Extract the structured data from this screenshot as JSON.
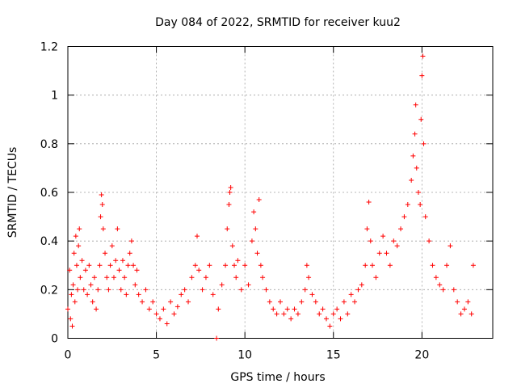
{
  "chart_data": {
    "type": "scatter",
    "title": "Day 084 of 2022, SRMTID for receiver kuu2",
    "xlabel": "GPS time / hours",
    "ylabel": "SRMTID / TECUs",
    "xlim": [
      0,
      24
    ],
    "ylim": [
      0,
      1.2
    ],
    "xticks": [
      0,
      5,
      10,
      15,
      20
    ],
    "xtick_labels": [
      "0",
      "5",
      "10",
      "15",
      "20"
    ],
    "yticks": [
      0,
      0.2,
      0.4,
      0.6,
      0.8,
      1,
      1.2
    ],
    "ytick_labels": [
      "0",
      "0.2",
      "0.4",
      "0.6",
      "0.8",
      "1",
      "1.2"
    ],
    "grid": true,
    "marker": "+",
    "color": "#ff0000",
    "series": [
      {
        "name": "SRMTID",
        "points": [
          [
            0.0,
            0.12
          ],
          [
            0.1,
            0.28
          ],
          [
            0.15,
            0.08
          ],
          [
            0.2,
            0.18
          ],
          [
            0.25,
            0.05
          ],
          [
            0.3,
            0.22
          ],
          [
            0.35,
            0.35
          ],
          [
            0.4,
            0.15
          ],
          [
            0.45,
            0.42
          ],
          [
            0.5,
            0.3
          ],
          [
            0.55,
            0.2
          ],
          [
            0.6,
            0.38
          ],
          [
            0.65,
            0.45
          ],
          [
            0.7,
            0.25
          ],
          [
            0.8,
            0.32
          ],
          [
            0.9,
            0.2
          ],
          [
            1.0,
            0.28
          ],
          [
            1.1,
            0.18
          ],
          [
            1.2,
            0.3
          ],
          [
            1.3,
            0.22
          ],
          [
            1.4,
            0.15
          ],
          [
            1.5,
            0.25
          ],
          [
            1.6,
            0.12
          ],
          [
            1.7,
            0.2
          ],
          [
            1.8,
            0.3
          ],
          [
            1.85,
            0.5
          ],
          [
            1.9,
            0.59
          ],
          [
            1.95,
            0.55
          ],
          [
            2.0,
            0.45
          ],
          [
            2.1,
            0.35
          ],
          [
            2.2,
            0.25
          ],
          [
            2.3,
            0.2
          ],
          [
            2.4,
            0.3
          ],
          [
            2.5,
            0.38
          ],
          [
            2.6,
            0.25
          ],
          [
            2.7,
            0.32
          ],
          [
            2.8,
            0.45
          ],
          [
            2.9,
            0.28
          ],
          [
            3.0,
            0.2
          ],
          [
            3.1,
            0.32
          ],
          [
            3.2,
            0.25
          ],
          [
            3.3,
            0.18
          ],
          [
            3.4,
            0.3
          ],
          [
            3.5,
            0.35
          ],
          [
            3.6,
            0.4
          ],
          [
            3.7,
            0.3
          ],
          [
            3.8,
            0.22
          ],
          [
            3.9,
            0.28
          ],
          [
            4.0,
            0.18
          ],
          [
            4.2,
            0.15
          ],
          [
            4.4,
            0.2
          ],
          [
            4.6,
            0.12
          ],
          [
            4.8,
            0.15
          ],
          [
            5.0,
            0.1
          ],
          [
            5.2,
            0.08
          ],
          [
            5.4,
            0.12
          ],
          [
            5.6,
            0.06
          ],
          [
            5.8,
            0.15
          ],
          [
            6.0,
            0.1
          ],
          [
            6.2,
            0.13
          ],
          [
            6.4,
            0.18
          ],
          [
            6.6,
            0.2
          ],
          [
            6.8,
            0.15
          ],
          [
            7.0,
            0.25
          ],
          [
            7.2,
            0.3
          ],
          [
            7.3,
            0.42
          ],
          [
            7.4,
            0.28
          ],
          [
            7.6,
            0.2
          ],
          [
            7.8,
            0.25
          ],
          [
            8.0,
            0.3
          ],
          [
            8.2,
            0.18
          ],
          [
            8.4,
            0.0
          ],
          [
            8.5,
            0.12
          ],
          [
            8.7,
            0.22
          ],
          [
            8.9,
            0.3
          ],
          [
            9.0,
            0.45
          ],
          [
            9.1,
            0.55
          ],
          [
            9.15,
            0.6
          ],
          [
            9.2,
            0.62
          ],
          [
            9.3,
            0.38
          ],
          [
            9.4,
            0.3
          ],
          [
            9.5,
            0.25
          ],
          [
            9.6,
            0.32
          ],
          [
            9.8,
            0.2
          ],
          [
            10.0,
            0.3
          ],
          [
            10.2,
            0.22
          ],
          [
            10.4,
            0.4
          ],
          [
            10.5,
            0.52
          ],
          [
            10.6,
            0.45
          ],
          [
            10.7,
            0.35
          ],
          [
            10.8,
            0.57
          ],
          [
            10.9,
            0.3
          ],
          [
            11.0,
            0.25
          ],
          [
            11.2,
            0.2
          ],
          [
            11.4,
            0.15
          ],
          [
            11.6,
            0.12
          ],
          [
            11.8,
            0.1
          ],
          [
            12.0,
            0.15
          ],
          [
            12.2,
            0.1
          ],
          [
            12.4,
            0.12
          ],
          [
            12.6,
            0.08
          ],
          [
            12.8,
            0.12
          ],
          [
            13.0,
            0.1
          ],
          [
            13.2,
            0.15
          ],
          [
            13.4,
            0.2
          ],
          [
            13.5,
            0.3
          ],
          [
            13.6,
            0.25
          ],
          [
            13.8,
            0.18
          ],
          [
            14.0,
            0.15
          ],
          [
            14.2,
            0.1
          ],
          [
            14.4,
            0.12
          ],
          [
            14.6,
            0.08
          ],
          [
            14.8,
            0.05
          ],
          [
            15.0,
            0.1
          ],
          [
            15.2,
            0.12
          ],
          [
            15.4,
            0.08
          ],
          [
            15.6,
            0.15
          ],
          [
            15.8,
            0.1
          ],
          [
            16.0,
            0.18
          ],
          [
            16.2,
            0.15
          ],
          [
            16.4,
            0.2
          ],
          [
            16.6,
            0.22
          ],
          [
            16.8,
            0.3
          ],
          [
            16.9,
            0.45
          ],
          [
            17.0,
            0.56
          ],
          [
            17.1,
            0.4
          ],
          [
            17.2,
            0.3
          ],
          [
            17.4,
            0.25
          ],
          [
            17.6,
            0.35
          ],
          [
            17.8,
            0.42
          ],
          [
            18.0,
            0.35
          ],
          [
            18.2,
            0.3
          ],
          [
            18.4,
            0.4
          ],
          [
            18.6,
            0.38
          ],
          [
            18.8,
            0.45
          ],
          [
            19.0,
            0.5
          ],
          [
            19.2,
            0.55
          ],
          [
            19.4,
            0.65
          ],
          [
            19.5,
            0.75
          ],
          [
            19.6,
            0.84
          ],
          [
            19.65,
            0.96
          ],
          [
            19.7,
            0.7
          ],
          [
            19.8,
            0.6
          ],
          [
            19.9,
            0.55
          ],
          [
            19.95,
            0.9
          ],
          [
            20.0,
            1.08
          ],
          [
            20.05,
            1.16
          ],
          [
            20.1,
            0.8
          ],
          [
            20.2,
            0.5
          ],
          [
            20.4,
            0.4
          ],
          [
            20.6,
            0.3
          ],
          [
            20.8,
            0.25
          ],
          [
            21.0,
            0.22
          ],
          [
            21.2,
            0.2
          ],
          [
            21.4,
            0.3
          ],
          [
            21.6,
            0.38
          ],
          [
            21.8,
            0.2
          ],
          [
            22.0,
            0.15
          ],
          [
            22.2,
            0.1
          ],
          [
            22.4,
            0.12
          ],
          [
            22.6,
            0.15
          ],
          [
            22.8,
            0.1
          ],
          [
            22.9,
            0.3
          ]
        ]
      }
    ]
  }
}
